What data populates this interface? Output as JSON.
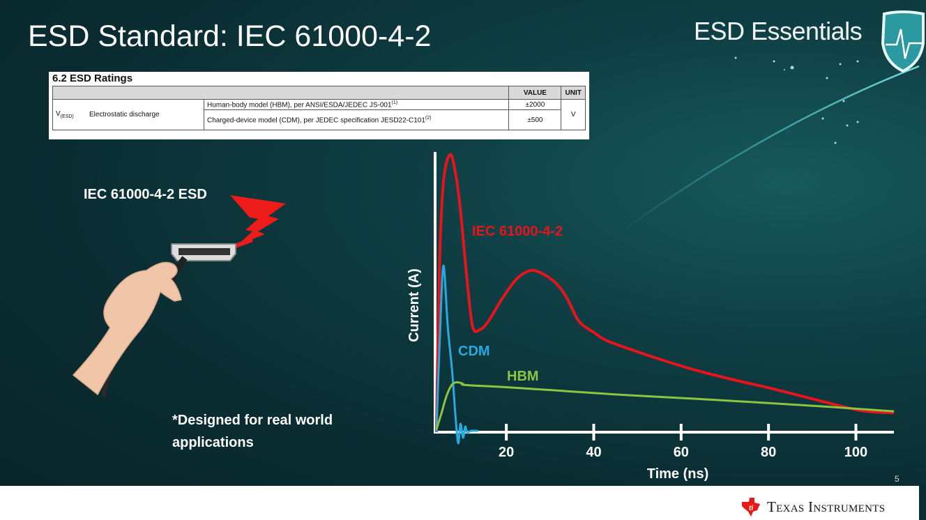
{
  "slide": {
    "title": "ESD Standard: IEC 61000-4-2",
    "brand": "ESD Essentials",
    "page_number": "5",
    "company": "Texas Instruments",
    "background_color": "#0a2d32"
  },
  "ratings_table": {
    "caption": "6.2 ESD Ratings",
    "headers": [
      "",
      "",
      "VALUE",
      "UNIT"
    ],
    "symbol": "V",
    "symbol_sub": "(ESD)",
    "parameter": "Electrostatic discharge",
    "rows": [
      {
        "condition": "Human-body model (HBM), per ANSI/ESDA/JEDEC JS-001",
        "note": "(1)",
        "value": "±2000"
      },
      {
        "condition": "Charged-device model (CDM), per JEDEC specification JESD22-C101",
        "note": "(2)",
        "value": "±500"
      }
    ],
    "unit": "V"
  },
  "illustration": {
    "label": "IEC 61000-4-2 ESD",
    "footnote_line1": "*Designed for real world",
    "footnote_line2": "applications"
  },
  "chart_data": {
    "type": "line",
    "xlabel": "Time (ns)",
    "ylabel": "Current (A)",
    "x_ticks": [
      20,
      40,
      60,
      80,
      100
    ],
    "xlim": [
      3.7,
      108.7
    ],
    "ylim": [
      0,
      100
    ],
    "y_ticks": [],
    "grid": false,
    "series": [
      {
        "name": "IEC 61000-4-2",
        "color": "#e8141b",
        "x": [
          4.0,
          4.7,
          5.6,
          7.1,
          8.3,
          9.5,
          11.0,
          12.3,
          14.0,
          15.9,
          19.0,
          22.2,
          25.0,
          27.0,
          29.5,
          31.8,
          34.0,
          36.6,
          40.0,
          43.0,
          50.0,
          55.7,
          63.0,
          71.7,
          80.0,
          87.6,
          95.0,
          100.4,
          104.0,
          108.7
        ],
        "y": [
          0,
          60,
          90,
          100,
          94,
          80,
          55,
          38,
          37,
          40,
          48,
          55,
          58,
          58,
          56,
          53,
          48,
          40,
          36,
          33,
          29,
          26,
          22.5,
          19,
          16,
          13,
          10,
          8,
          7.3,
          7
        ]
      },
      {
        "name": "CDM",
        "color": "#2aa8e0",
        "x": [
          4.0,
          4.8,
          5.6,
          6.6,
          7.6,
          8.4,
          9.0,
          9.5,
          10.1,
          10.6,
          11.0,
          12.0,
          13.5
        ],
        "y": [
          0,
          35,
          60,
          38,
          22,
          5,
          -4,
          3,
          -2,
          2,
          0,
          0.5,
          0.5
        ]
      },
      {
        "name": "HBM",
        "color": "#8cc63f",
        "x": [
          4.0,
          5.0,
          6.3,
          7.5,
          8.7,
          10.0,
          10.7,
          20.0,
          31.8,
          45.0,
          63.7,
          80.0,
          95.0,
          108.7
        ],
        "y": [
          1,
          6,
          13,
          17,
          18,
          17.5,
          17,
          16.2,
          15,
          13.6,
          12,
          10.5,
          9,
          7.5
        ]
      }
    ]
  }
}
